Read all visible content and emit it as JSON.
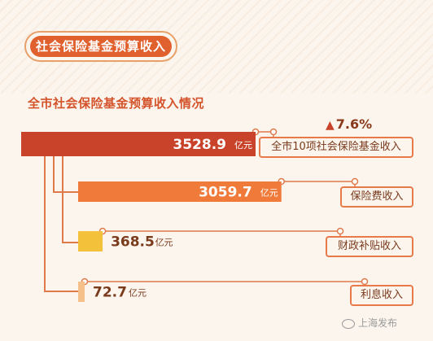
{
  "header": {
    "badge_title": "社会保险基金预算收入",
    "subtitle": "全市社会保险基金预算收入情况"
  },
  "chart_data": {
    "type": "bar",
    "orientation": "horizontal",
    "title": "全市社会保险基金预算收入情况",
    "unit": "亿元",
    "categories": [
      "全市10项社会保险基金收入",
      "保险费收入",
      "财政补贴收入",
      "利息收入"
    ],
    "values": [
      3528.9,
      3059.7,
      368.5,
      72.7
    ],
    "value_labels": [
      "3528.9",
      "3059.7",
      "368.5",
      "72.7"
    ],
    "annotations": [
      {
        "category": "全市10项社会保险基金收入",
        "text": "7.6%",
        "direction": "up"
      }
    ],
    "colors": {
      "total": "#c9432a",
      "insurance": "#f07a3a",
      "subsidy": "#f4c23a",
      "interest": "#f6c08a",
      "connector": "#e07a4a"
    }
  },
  "watermark": {
    "text": "上海发布"
  }
}
